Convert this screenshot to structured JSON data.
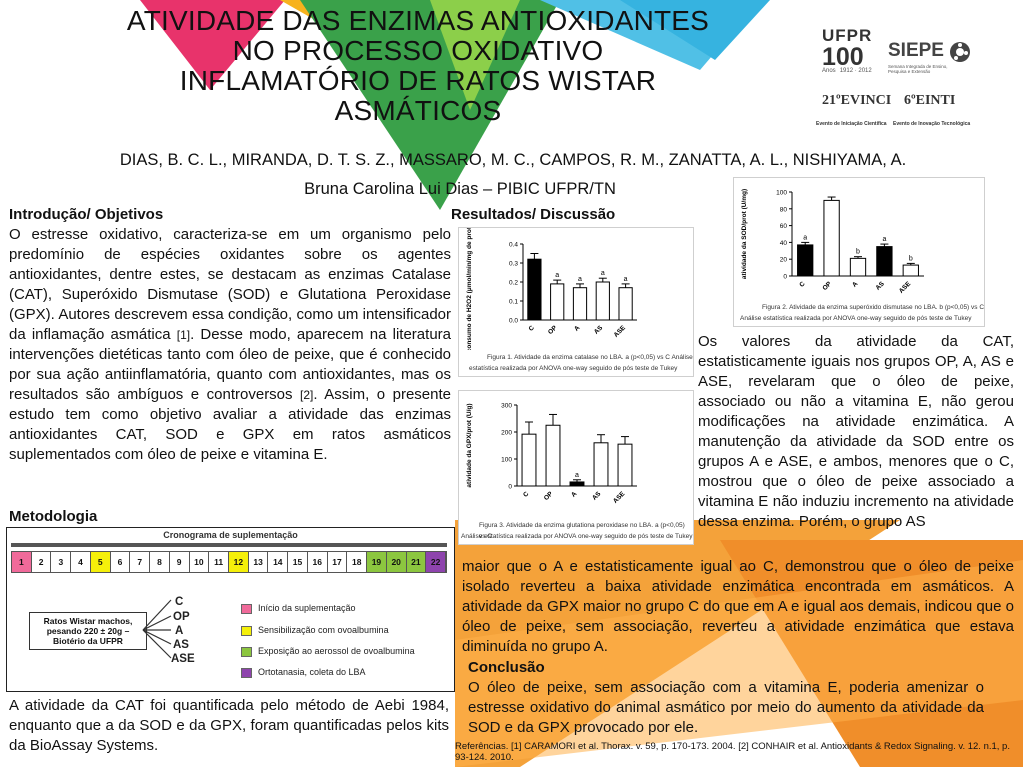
{
  "title": {
    "line1": "ATIVIDADE DAS ENZIMAS ANTIOXIDANTES",
    "line2": "NO PROCESSO OXIDATIVO",
    "line3": "INFLAMATÓRIO DE RATOS WISTAR",
    "line4": "ASMÁTICOS"
  },
  "authors": "DIAS, B. C. L., MIRANDA, D. T. S. Z., MASSARO, M. C., CAMPOS, R. M., ZANATTA, A. L., NISHIYAMA, A.",
  "student": "Bruna Carolina Lui Dias – PIBIC UFPR/TN",
  "logos": {
    "ufpr": "UFPR",
    "ufpr_100": "100",
    "ufpr_anos": "Anos",
    "ufpr_years": "1912 · 2012",
    "siepe": "SIEPE",
    "siepe_sub": "Semana Integrada de Ensino, Pesquisa e Extensão",
    "evinci": "21ºEVINCI",
    "einti": "6ºEINTI",
    "evinci_sub": "Evento de Iniciação Científica",
    "einti_sub": "Evento de Inovação Tecnológica"
  },
  "intro": {
    "heading": "Introdução/ Objetivos",
    "p1": "O estresse oxidativo, caracteriza-se em um organismo pelo predomínio de espécies oxidantes sobre os agentes antioxidantes, dentre estes, se destacam as enzimas Catalase (CAT), Superóxido Dismutase (SOD) e Glutationa Peroxidase (GPX). Autores descrevem essa condição, como um intensificador da inflamação asmática ",
    "ref1": "[1]",
    "p2": ". Desse modo, aparecem na literatura intervenções dietéticas tanto com óleo de peixe, que é conhecido por sua ação antiinflamatória, quanto com antioxidantes, mas os resultados são ambíguos e controversos ",
    "ref2": "[2]",
    "p3": ". Assim, o presente estudo tem como objetivo avaliar a atividade das enzimas antioxidantes CAT, SOD e GPX em ratos asmáticos suplementados com óleo de peixe e vitamina E."
  },
  "metodologia": {
    "heading": "Metodologia",
    "timeline_title": "Cronograma de suplementação",
    "days": [
      "1",
      "2",
      "3",
      "4",
      "5",
      "6",
      "7",
      "8",
      "9",
      "10",
      "11",
      "12",
      "13",
      "14",
      "15",
      "16",
      "17",
      "18",
      "19",
      "20",
      "21",
      "22"
    ],
    "rats_box": "Ratos Wistar machos, pesando 220 ± 20g – Biotério da UFPR",
    "groups": [
      "C",
      "OP",
      "A",
      "AS",
      "ASE"
    ],
    "legend": [
      {
        "label": "Início da suplementação",
        "color": "#f06a9a"
      },
      {
        "label": "Sensibilização com ovoalbumina",
        "color": "#f5f00a"
      },
      {
        "label": "Exposição ao aerossol de ovoalbumina",
        "color": "#8cc63f"
      },
      {
        "label": "Ortotanasia, coleta do LBA",
        "color": "#8e44ad"
      }
    ],
    "text": "A atividade da CAT foi quantificada pelo método de Aebi 1984, enquanto que a da SOD e da GPX, foram quantificadas pelos kits da BioAssay Systems."
  },
  "results": {
    "heading": "Resultados/ Discussão",
    "text1": "Os valores da atividade da CAT, estatisticamente iguais nos grupos OP, A, AS e ASE, revelaram que o óleo de peixe, associado ou não a vitamina E, não gerou modificações na atividade enzimática. A manutenção da atividade da SOD entre os grupos A e ASE, e ambos, menores que o C, mostrou que o óleo de peixe associado a vitamina E não induziu incremento na atividade dessa enzima. Porém, o grupo AS",
    "text2": "maior que o A e estatisticamente igual ao C, demonstrou que o óleo de peixe isolado reverteu a baixa atividade enzimática encontrada em asmáticos. A atividade da GPX maior no grupo C do que em A e igual aos demais, indicou que o óleo de peixe, sem associação, reverteu a atividade enzimática que estava diminuída no grupo A."
  },
  "conclusao": {
    "heading": "Conclusão",
    "text": "O óleo de peixe, sem associação com a vitamina E, poderia amenizar o estresse oxidativo do animal asmático por meio do aumento da atividade da SOD e da GPX provocado por ele."
  },
  "references": "Referências. [1] CARAMORI et al. Thorax. v. 59, p. 170-173. 2004. [2] CONHAIR et al. Antioxidants & Redox Signaling. v. 12. n.1, p. 93-124. 2010.",
  "captions": {
    "fig1_a": "Figura 1. Atividade da enzima catalase no LBA. a (p<0,05) vs C Análise",
    "fig1_b": "estatística realizada por ANOVA one-way seguido de pós teste de Tukey",
    "fig2_a": "Figura 2. Atividade da enzima superóxido dismutase no LBA. b (p<0,05) vs C",
    "fig2_b": "Análise estatística realizada por ANOVA one-way seguido de pós teste de Tukey",
    "fig3_a": "Figura 3. Atividade da enzima glutationa peroxidase no LBA. a (p<0,05) vs C",
    "fig3_b": "Análise estatística realizada por ANOVA one-way seguido de pós teste de Tukey"
  },
  "chart_data": [
    {
      "id": "cat",
      "type": "bar",
      "categories": [
        "C",
        "OP",
        "A",
        "AS",
        "ASE"
      ],
      "values": [
        0.32,
        0.19,
        0.17,
        0.2,
        0.17
      ],
      "errors": [
        0.03,
        0.02,
        0.02,
        0.02,
        0.02
      ],
      "labels": [
        "",
        "a",
        "a",
        "a",
        "a"
      ],
      "ylabel": "consumo de H2O2 (μmol/min/mg de proteína)",
      "ylim": [
        0,
        0.4
      ],
      "yticks": [
        "0.0",
        "0.1",
        "0.2",
        "0.3",
        "0.4"
      ],
      "tick_values": [
        0,
        0.1,
        0.2,
        0.3,
        0.4
      ],
      "fills": [
        "#000000",
        "#ffffff",
        "#ffffff",
        "#ffffff",
        "#ffffff"
      ]
    },
    {
      "id": "sod",
      "type": "bar",
      "categories": [
        "C",
        "OP",
        "A",
        "AS",
        "ASE"
      ],
      "values": [
        37,
        90,
        21,
        35,
        13
      ],
      "errors": [
        3,
        4,
        2,
        3,
        2
      ],
      "labels": [
        "a",
        "",
        "b",
        "a",
        "b"
      ],
      "ylabel": "atividade da SOD/prot (U/mg)",
      "ylim": [
        0,
        100
      ],
      "yticks": [
        "0",
        "20",
        "40",
        "60",
        "80",
        "100"
      ],
      "tick_values": [
        0,
        20,
        40,
        60,
        80,
        100
      ],
      "fills": [
        "#000000",
        "#ffffff",
        "#ffffff",
        "#000000",
        "#ffffff"
      ]
    },
    {
      "id": "gpx",
      "type": "bar",
      "categories": [
        "C",
        "OP",
        "A",
        "AS",
        "ASE"
      ],
      "values": [
        192,
        225,
        15,
        160,
        155
      ],
      "errors": [
        45,
        40,
        8,
        30,
        28
      ],
      "labels": [
        "",
        "",
        "a",
        "",
        ""
      ],
      "ylabel": "atividade da GPX/prot (U/g)",
      "ylim": [
        0,
        300
      ],
      "yticks": [
        "0",
        "100",
        "200",
        "300"
      ],
      "tick_values": [
        0,
        100,
        200,
        300
      ],
      "fills": [
        "#ffffff",
        "#ffffff",
        "#000000",
        "#ffffff",
        "#ffffff"
      ]
    }
  ]
}
